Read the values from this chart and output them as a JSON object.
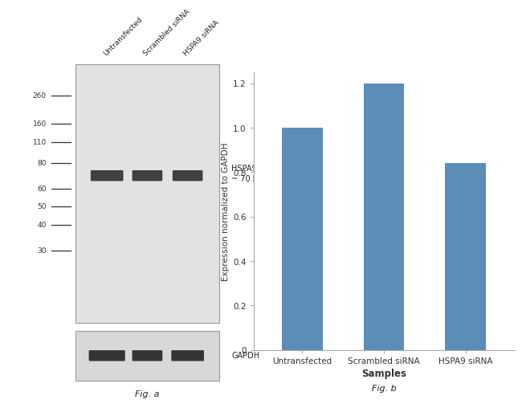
{
  "bar_categories": [
    "Untransfected",
    "Scrambled siRNA",
    "HSPA9 siRNA"
  ],
  "bar_values": [
    1.0,
    1.2,
    0.84
  ],
  "bar_color": "#5B8DB8",
  "ylabel_bar": "Expression normalized to GAPDH",
  "xlabel_bar": "Samples",
  "figb_label": "Fig. b",
  "figa_label": "Fig. a",
  "yticks_bar": [
    0,
    0.2,
    0.4,
    0.6,
    0.8,
    1.0,
    1.2
  ],
  "mw_markers": [
    260,
    160,
    110,
    80,
    60,
    50,
    40,
    30
  ],
  "hspa9_label": "HSPA9\n~ 70 kDa",
  "gapdh_label": "GAPDH",
  "col_labels": [
    "Untransfected",
    "Scrambled siRNA",
    "HSPA9 siRNA"
  ],
  "background_color": "#ffffff",
  "wb_bg": "#E2E2E2",
  "gapdh_bg": "#D8D8D8",
  "band_color_hspa9": "#2A2A2A",
  "band_color_gapdh": "#1E1E1E"
}
